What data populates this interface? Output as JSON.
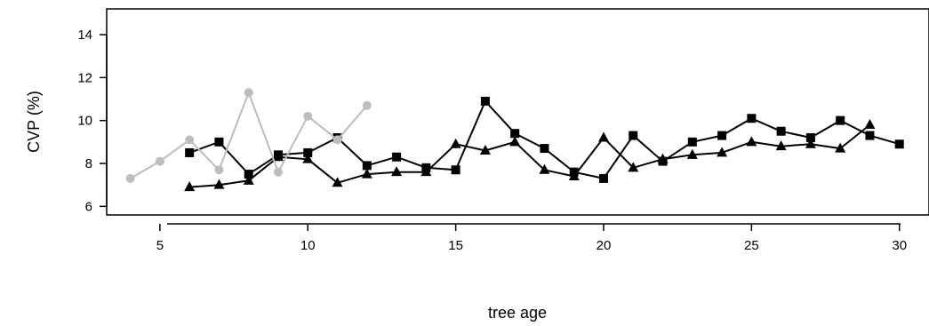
{
  "chart_data": {
    "type": "line",
    "xlabel": "tree age",
    "ylabel": "CVP (%)",
    "xlim": [
      3.2,
      31.0
    ],
    "ylim": [
      5.6,
      15.2
    ],
    "x_ticks": [
      5,
      10,
      15,
      20,
      25,
      30
    ],
    "y_ticks": [
      6,
      8,
      10,
      12,
      14
    ],
    "grid": false,
    "series": [
      {
        "marker": "square",
        "color": "#000000",
        "x": [
          6,
          7,
          8,
          9,
          10,
          11,
          12,
          13,
          14,
          15,
          16,
          17,
          18,
          19,
          20,
          21,
          22,
          23,
          24,
          25,
          26,
          27,
          28,
          29,
          30
        ],
        "y": [
          8.5,
          9.0,
          7.5,
          8.4,
          8.5,
          9.2,
          7.9,
          8.3,
          7.8,
          7.7,
          10.9,
          9.4,
          8.7,
          7.6,
          7.3,
          9.3,
          8.1,
          9.0,
          9.3,
          10.1,
          9.5,
          9.2,
          10.0,
          9.3,
          8.9
        ]
      },
      {
        "marker": "triangle",
        "color": "#000000",
        "x": [
          6,
          7,
          8,
          9,
          10,
          11,
          12,
          13,
          14,
          15,
          16,
          17,
          18,
          19,
          20,
          21,
          22,
          23,
          24,
          25,
          26,
          27,
          28,
          29
        ],
        "y": [
          6.9,
          7.0,
          7.2,
          8.3,
          8.2,
          7.1,
          7.5,
          7.6,
          7.6,
          8.9,
          8.6,
          9.0,
          7.7,
          7.4,
          9.2,
          7.8,
          8.2,
          8.4,
          8.5,
          9.0,
          8.8,
          8.9,
          8.7,
          9.8
        ]
      },
      {
        "marker": "circle",
        "color": "#bdbdbd",
        "x": [
          4,
          5,
          6,
          7,
          8,
          9,
          10,
          11,
          12
        ],
        "y": [
          7.3,
          8.1,
          9.1,
          7.7,
          11.3,
          7.6,
          10.2,
          9.1,
          10.7
        ]
      }
    ]
  }
}
